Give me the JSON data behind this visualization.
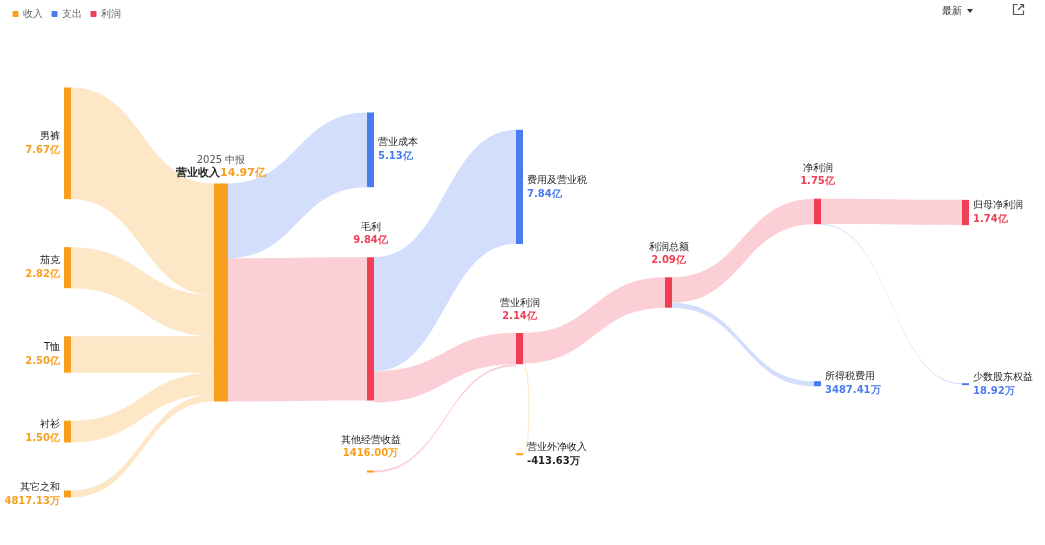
{
  "chart_data": {
    "type": "other",
    "categories": [
      "男裤",
      "茄克",
      "T恤",
      "衬衫",
      "其它之和",
      "营业收入",
      "营业成本",
      "毛利",
      "其他经营收益",
      "费用及营业税",
      "营业利润",
      "营业外净收入",
      "利润总额",
      "净利润",
      "所得税费用",
      "归母净利润",
      "少数股东权益"
    ],
    "series": [
      {
        "name": "收入",
        "color": "#f7a01f",
        "values": [
          7.67,
          2.82,
          2.5,
          1.5,
          4817.13,
          14.97,
          null,
          null,
          1416.0,
          null,
          null,
          -413.63,
          null,
          null,
          null,
          null,
          null
        ],
        "value_labels": [
          "7.67亿",
          "2.82亿",
          "2.50亿",
          "1.50亿",
          "4817.13万",
          "14.97亿",
          null,
          null,
          "1416.00万",
          null,
          null,
          "-413.63万",
          null,
          null,
          null,
          null,
          null
        ]
      },
      {
        "name": "支出",
        "color": "#4a7cf0",
        "values": [
          null,
          null,
          null,
          null,
          null,
          null,
          5.13,
          null,
          null,
          7.84,
          null,
          null,
          null,
          null,
          3487.41,
          null,
          18.92
        ],
        "value_labels": [
          null,
          null,
          null,
          null,
          null,
          null,
          "5.13亿",
          null,
          null,
          "7.84亿",
          null,
          null,
          null,
          null,
          "3487.41万",
          null,
          "18.92万"
        ]
      },
      {
        "name": "利润",
        "color": "#ef3e55",
        "values": [
          null,
          null,
          null,
          null,
          null,
          null,
          null,
          9.84,
          null,
          null,
          2.14,
          null,
          2.09,
          1.75,
          null,
          1.74,
          null
        ],
        "value_labels": [
          null,
          null,
          null,
          null,
          null,
          null,
          null,
          "9.84亿",
          null,
          null,
          "2.14亿",
          null,
          "2.09亿",
          "1.75亿",
          null,
          "1.74亿",
          null
        ]
      }
    ],
    "annotations": [
      "2025 中报",
      "最新"
    ],
    "legend": "top left"
  }
}
